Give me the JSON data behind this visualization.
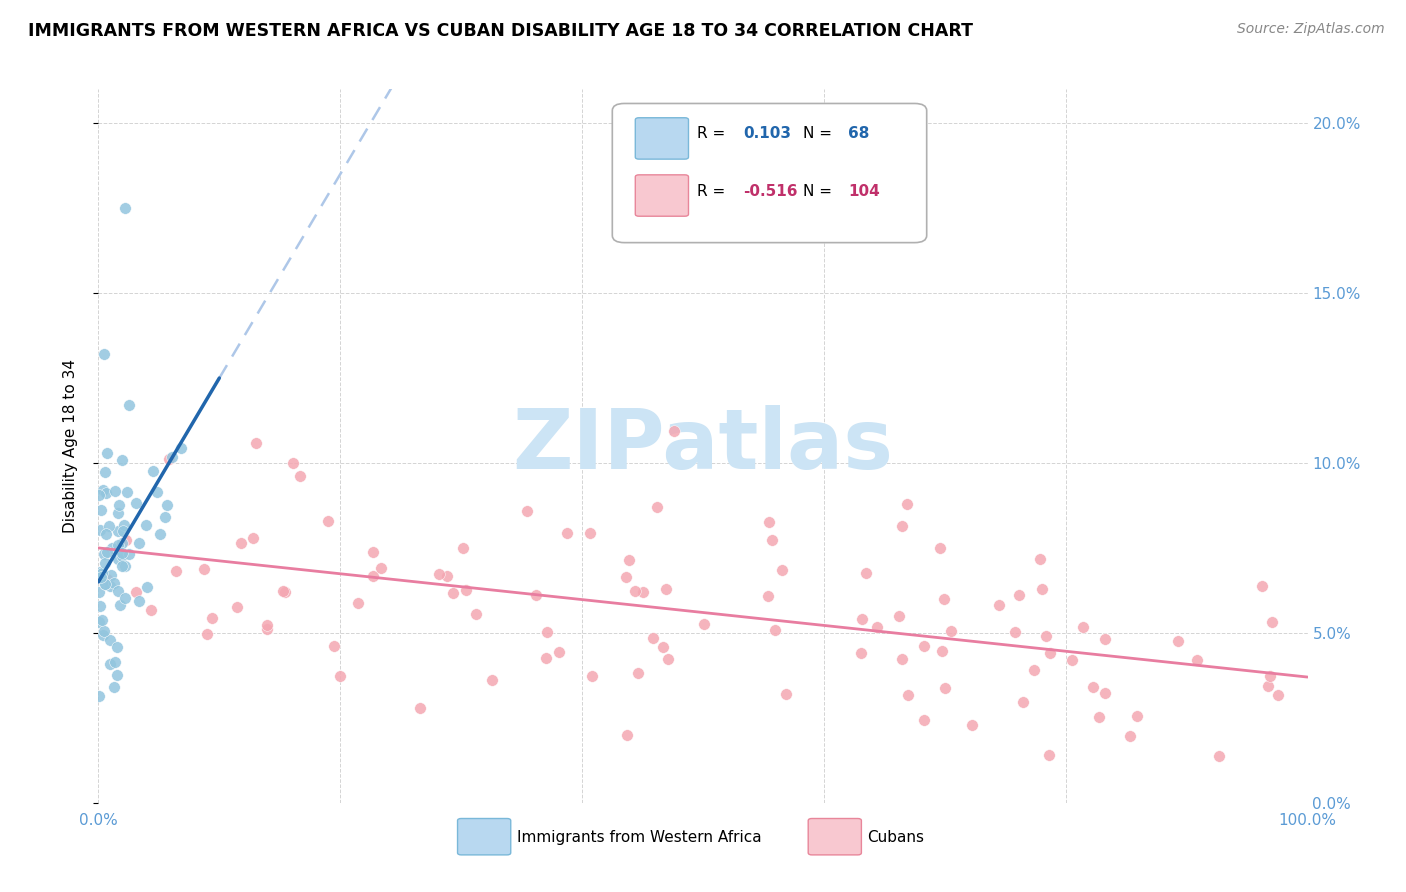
{
  "title": "IMMIGRANTS FROM WESTERN AFRICA VS CUBAN DISABILITY AGE 18 TO 34 CORRELATION CHART",
  "source": "Source: ZipAtlas.com",
  "ylabel": "Disability Age 18 to 34",
  "legend1_label": "Immigrants from Western Africa",
  "legend2_label": "Cubans",
  "r1": 0.103,
  "n1": 68,
  "r2": -0.516,
  "n2": 104,
  "color_blue": "#92c5de",
  "color_pink": "#f4a7b2",
  "line_blue_solid": "#2166ac",
  "line_blue_dash": "#aec7e8",
  "line_pink": "#e87da0",
  "xlim": [
    0.0,
    1.0
  ],
  "ylim": [
    0.0,
    0.21
  ],
  "yticks": [
    0.0,
    0.05,
    0.1,
    0.15,
    0.2
  ],
  "ytick_labels": [
    "0.0%",
    "5.0%",
    "10.0%",
    "15.0%",
    "20.0%"
  ],
  "xtick_left": "0.0%",
  "xtick_right": "100.0%",
  "watermark_text": "ZIPatlas",
  "watermark_color": "#cce4f5",
  "seed_blue": 7,
  "seed_pink": 42
}
